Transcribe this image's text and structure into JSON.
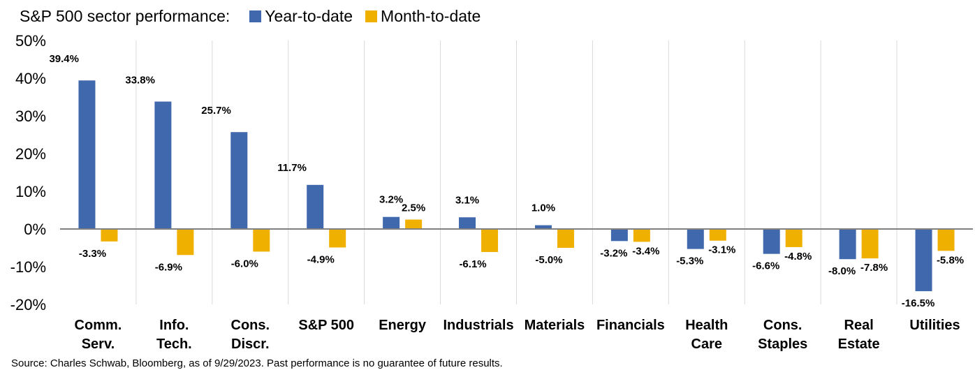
{
  "legend": {
    "title": "S&P 500 sector performance:",
    "items": [
      {
        "label": "Year-to-date",
        "color": "#4068AC"
      },
      {
        "label": "Month-to-date",
        "color": "#F0B000"
      }
    ]
  },
  "source": "Source: Charles Schwab, Bloomberg, as of 9/29/2023. Past performance is no guarantee of future results.",
  "chart_data": {
    "type": "bar",
    "title": "S&P 500 sector performance:",
    "categories": [
      [
        "Comm.",
        "Serv."
      ],
      [
        "Info.",
        "Tech."
      ],
      [
        "Cons.",
        "Discr."
      ],
      [
        "S&P 500"
      ],
      [
        "Energy"
      ],
      [
        "Industrials"
      ],
      [
        "Materials"
      ],
      [
        "Financials"
      ],
      [
        "Health",
        "Care"
      ],
      [
        "Cons.",
        "Staples"
      ],
      [
        "Real",
        "Estate"
      ],
      [
        "Utilities"
      ]
    ],
    "series": [
      {
        "name": "Year-to-date",
        "color": "#4068AC",
        "values": [
          39.4,
          33.8,
          25.7,
          11.7,
          3.2,
          3.1,
          1.0,
          -3.2,
          -5.3,
          -6.6,
          -8.0,
          -16.5
        ],
        "labels": [
          "39.4%",
          "33.8%",
          "25.7%",
          "11.7%",
          "3.2%",
          "3.1%",
          "1.0%",
          "-3.2%",
          "-5.3%",
          "-6.6%",
          "-8.0%",
          "-16.5%"
        ]
      },
      {
        "name": "Month-to-date",
        "color": "#F0B000",
        "values": [
          -3.3,
          -6.9,
          -6.0,
          -4.9,
          2.5,
          -6.1,
          -5.0,
          -3.4,
          -3.1,
          -4.8,
          -7.8,
          -5.8
        ],
        "labels": [
          "-3.3%",
          "-6.9%",
          "-6.0%",
          "-4.9%",
          "2.5%",
          "-6.1%",
          "-5.0%",
          "-3.4%",
          "-3.1%",
          "-4.8%",
          "-7.8%",
          "-5.8%"
        ]
      }
    ],
    "ylim": [
      -20,
      50
    ],
    "yticks": [
      50,
      40,
      30,
      20,
      10,
      0,
      -10,
      -20
    ],
    "ytick_labels": [
      "50%",
      "40%",
      "30%",
      "20%",
      "10%",
      "0%",
      "-10%",
      "-20%"
    ],
    "grid": false,
    "category_separators": true,
    "legend_position": "top"
  }
}
